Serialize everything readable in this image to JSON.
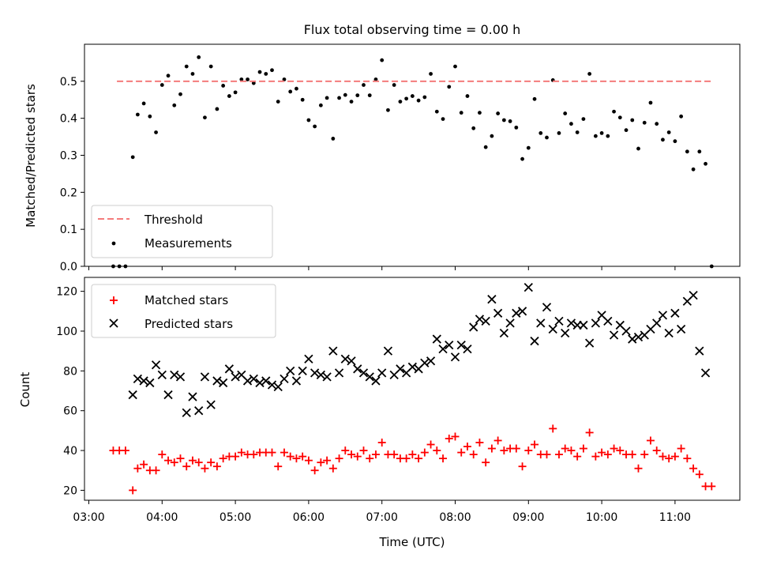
{
  "chart_data": [
    {
      "type": "scatter",
      "title": "Flux total observing time = 0.00 h",
      "xlabel": "",
      "ylabel": "Matched/Predicted stars",
      "ylim": [
        0,
        0.6
      ],
      "yticks": [
        "0.0",
        "0.1",
        "0.2",
        "0.3",
        "0.4",
        "0.5"
      ],
      "legend_position": "lower-left",
      "threshold": {
        "name": "Threshold",
        "value": 0.5,
        "x_start": "03:23",
        "x_end": "11:31",
        "color": "#f47c7c"
      },
      "series": [
        {
          "name": "Measurements",
          "color": "#000000",
          "x": [
            "03:20",
            "03:25",
            "03:30",
            "03:36",
            "03:40",
            "03:45",
            "03:50",
            "03:55",
            "04:00",
            "04:05",
            "04:10",
            "04:15",
            "04:20",
            "04:25",
            "04:30",
            "04:35",
            "04:40",
            "04:45",
            "04:50",
            "04:55",
            "05:00",
            "05:05",
            "05:10",
            "05:15",
            "05:20",
            "05:25",
            "05:30",
            "05:35",
            "05:40",
            "05:45",
            "05:50",
            "05:55",
            "06:00",
            "06:05",
            "06:10",
            "06:15",
            "06:20",
            "06:25",
            "06:30",
            "06:35",
            "06:40",
            "06:45",
            "06:50",
            "06:55",
            "07:00",
            "07:05",
            "07:10",
            "07:15",
            "07:20",
            "07:25",
            "07:30",
            "07:35",
            "07:40",
            "07:45",
            "07:50",
            "07:55",
            "08:00",
            "08:05",
            "08:10",
            "08:15",
            "08:20",
            "08:25",
            "08:30",
            "08:35",
            "08:40",
            "08:45",
            "08:50",
            "08:55",
            "09:00",
            "09:05",
            "09:10",
            "09:15",
            "09:20",
            "09:25",
            "09:30",
            "09:35",
            "09:40",
            "09:45",
            "09:50",
            "09:55",
            "10:00",
            "10:05",
            "10:10",
            "10:15",
            "10:20",
            "10:25",
            "10:30",
            "10:35",
            "10:40",
            "10:45",
            "10:50",
            "10:55",
            "11:00",
            "11:05",
            "11:10",
            "11:15",
            "11:20",
            "11:25",
            "11:30"
          ],
          "y": [
            0.0,
            0.0,
            0.0,
            0.295,
            0.41,
            0.44,
            0.405,
            0.362,
            0.49,
            0.515,
            0.435,
            0.465,
            0.54,
            0.52,
            0.565,
            0.402,
            0.54,
            0.425,
            0.488,
            0.46,
            0.47,
            0.505,
            0.505,
            0.495,
            0.525,
            0.52,
            0.53,
            0.445,
            0.505,
            0.472,
            0.48,
            0.45,
            0.395,
            0.378,
            0.435,
            0.455,
            0.345,
            0.455,
            0.463,
            0.445,
            0.462,
            0.49,
            0.462,
            0.505,
            0.557,
            0.422,
            0.49,
            0.445,
            0.453,
            0.46,
            0.448,
            0.457,
            0.52,
            0.418,
            0.398,
            0.485,
            0.54,
            0.415,
            0.46,
            0.373,
            0.415,
            0.322,
            0.352,
            0.413,
            0.395,
            0.392,
            0.375,
            0.29,
            0.32,
            0.452,
            0.36,
            0.348,
            0.503,
            0.36,
            0.413,
            0.385,
            0.362,
            0.398,
            0.52,
            0.352,
            0.36,
            0.352,
            0.418,
            0.402,
            0.368,
            0.395,
            0.318,
            0.388,
            0.442,
            0.385,
            0.342,
            0.362,
            0.338,
            0.405,
            0.31,
            0.262,
            0.31,
            0.277,
            0.0
          ]
        }
      ]
    },
    {
      "type": "scatter",
      "title": "",
      "xlabel": "Time (UTC)",
      "ylabel": "Count",
      "ylim": [
        15,
        127
      ],
      "yticks": [
        "20",
        "40",
        "60",
        "80",
        "100",
        "120"
      ],
      "xticks": [
        "03:00",
        "04:00",
        "05:00",
        "06:00",
        "07:00",
        "08:00",
        "09:00",
        "10:00",
        "11:00"
      ],
      "legend_position": "upper-left",
      "series": [
        {
          "name": "Matched stars",
          "color": "#ff0000",
          "marker": "+",
          "x": [
            "03:20",
            "03:25",
            "03:30",
            "03:36",
            "03:40",
            "03:45",
            "03:50",
            "03:55",
            "04:00",
            "04:05",
            "04:10",
            "04:15",
            "04:20",
            "04:25",
            "04:30",
            "04:35",
            "04:40",
            "04:45",
            "04:50",
            "04:55",
            "05:00",
            "05:05",
            "05:10",
            "05:15",
            "05:20",
            "05:25",
            "05:30",
            "05:35",
            "05:40",
            "05:45",
            "05:50",
            "05:55",
            "06:00",
            "06:05",
            "06:10",
            "06:15",
            "06:20",
            "06:25",
            "06:30",
            "06:35",
            "06:40",
            "06:45",
            "06:50",
            "06:55",
            "07:00",
            "07:05",
            "07:10",
            "07:15",
            "07:20",
            "07:25",
            "07:30",
            "07:35",
            "07:40",
            "07:45",
            "07:50",
            "07:55",
            "08:00",
            "08:05",
            "08:10",
            "08:15",
            "08:20",
            "08:25",
            "08:30",
            "08:35",
            "08:40",
            "08:45",
            "08:50",
            "08:55",
            "09:00",
            "09:05",
            "09:10",
            "09:15",
            "09:20",
            "09:25",
            "09:30",
            "09:35",
            "09:40",
            "09:45",
            "09:50",
            "09:55",
            "10:00",
            "10:05",
            "10:10",
            "10:15",
            "10:20",
            "10:25",
            "10:30",
            "10:35",
            "10:40",
            "10:45",
            "10:50",
            "10:55",
            "11:00",
            "11:05",
            "11:10",
            "11:15",
            "11:20",
            "11:25",
            "11:30"
          ],
          "y": [
            40,
            40,
            40,
            20,
            31,
            33,
            30,
            30,
            38,
            35,
            34,
            36,
            32,
            35,
            34,
            31,
            34,
            32,
            36,
            37,
            37,
            39,
            38,
            38,
            39,
            39,
            39,
            32,
            39,
            37,
            36,
            37,
            35,
            30,
            34,
            35,
            31,
            36,
            40,
            38,
            37,
            40,
            36,
            38,
            44,
            38,
            38,
            36,
            36,
            38,
            36,
            39,
            43,
            40,
            36,
            46,
            47,
            39,
            42,
            38,
            44,
            34,
            41,
            45,
            40,
            41,
            41,
            32,
            40,
            43,
            38,
            38,
            51,
            38,
            41,
            40,
            37,
            41,
            49,
            37,
            39,
            38,
            41,
            40,
            38,
            38,
            31,
            38,
            45,
            40,
            37,
            36,
            37,
            41,
            36,
            31,
            28,
            22,
            22
          ]
        },
        {
          "name": "Predicted stars",
          "color": "#000000",
          "marker": "x",
          "x": [
            "03:36",
            "03:40",
            "03:45",
            "03:50",
            "03:55",
            "04:00",
            "04:05",
            "04:10",
            "04:15",
            "04:20",
            "04:25",
            "04:30",
            "04:35",
            "04:40",
            "04:45",
            "04:50",
            "04:55",
            "05:00",
            "05:05",
            "05:10",
            "05:15",
            "05:20",
            "05:25",
            "05:30",
            "05:35",
            "05:40",
            "05:45",
            "05:50",
            "05:55",
            "06:00",
            "06:05",
            "06:10",
            "06:15",
            "06:20",
            "06:25",
            "06:30",
            "06:35",
            "06:40",
            "06:45",
            "06:50",
            "06:55",
            "07:00",
            "07:05",
            "07:10",
            "07:15",
            "07:20",
            "07:25",
            "07:30",
            "07:35",
            "07:40",
            "07:45",
            "07:50",
            "07:55",
            "08:00",
            "08:05",
            "08:10",
            "08:15",
            "08:20",
            "08:25",
            "08:30",
            "08:35",
            "08:40",
            "08:45",
            "08:50",
            "08:55",
            "09:00",
            "09:05",
            "09:10",
            "09:15",
            "09:20",
            "09:25",
            "09:30",
            "09:35",
            "09:40",
            "09:45",
            "09:50",
            "09:55",
            "10:00",
            "10:05",
            "10:10",
            "10:15",
            "10:20",
            "10:25",
            "10:30",
            "10:35",
            "10:40",
            "10:45",
            "10:50",
            "10:55",
            "11:00",
            "11:05",
            "11:10",
            "11:15",
            "11:20",
            "11:25"
          ],
          "y": [
            68,
            76,
            75,
            74,
            83,
            78,
            68,
            78,
            77,
            59,
            67,
            60,
            77,
            63,
            75,
            74,
            81,
            77,
            78,
            75,
            76,
            74,
            75,
            73,
            72,
            76,
            80,
            75,
            80,
            86,
            79,
            78,
            77,
            90,
            79,
            86,
            85,
            81,
            79,
            77,
            75,
            79,
            90,
            78,
            81,
            79,
            82,
            81,
            84,
            85,
            96,
            91,
            93,
            87,
            93,
            91,
            102,
            106,
            105,
            116,
            109,
            99,
            104,
            109,
            110,
            122,
            95,
            104,
            112,
            101,
            105,
            99,
            104,
            103,
            103,
            94,
            104,
            108,
            105,
            98,
            103,
            100,
            96,
            97,
            98,
            101,
            104,
            108,
            99,
            109,
            101,
            115,
            118,
            90,
            79
          ]
        }
      ]
    }
  ]
}
